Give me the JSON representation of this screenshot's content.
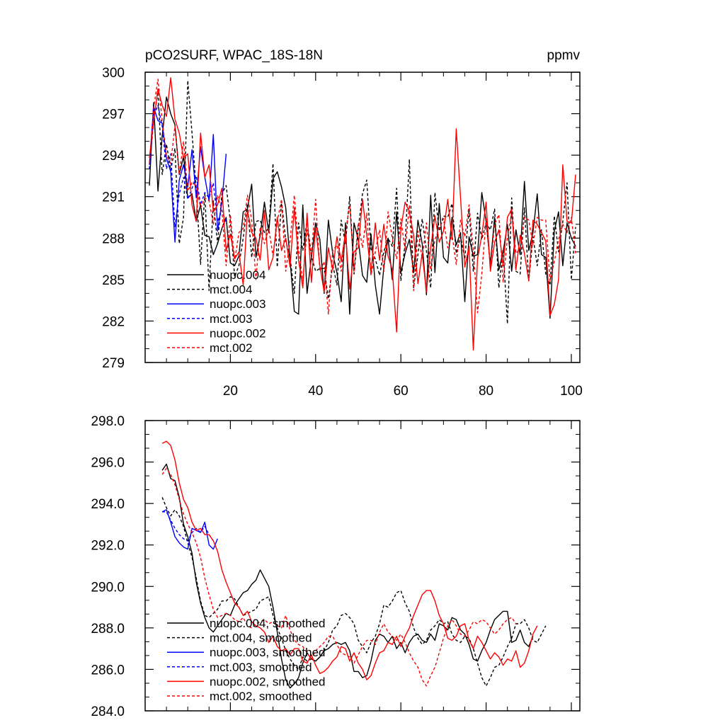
{
  "chart_data": [
    {
      "type": "line",
      "title": "pCO2SURF, WPAC_18S-18N",
      "units": "ppmv",
      "xlim": [
        0,
        102
      ],
      "ylim": [
        279,
        300
      ],
      "yticks": [
        279,
        282,
        285,
        288,
        291,
        294,
        297,
        300
      ],
      "ytick_labels": [
        "279",
        "282",
        "285",
        "288",
        "291",
        "294",
        "297",
        "300"
      ],
      "xticks": [
        20,
        40,
        60,
        80,
        100
      ],
      "xtick_labels": [
        "20",
        "40",
        "60",
        "80",
        "100"
      ],
      "series": [
        {
          "name": "nuopc.004",
          "color": "#000000",
          "dash": "solid",
          "x0": 1,
          "values": [
            291.8,
            297.8,
            291.4,
            295.4,
            298.2,
            297.0,
            296.2,
            292.6,
            293.9,
            290.9,
            291.2,
            289.2,
            290.4,
            288.2,
            288.1,
            286.8,
            287.6,
            288.7,
            289.5,
            286.2,
            286.0,
            286.7,
            289.9,
            290.1,
            291.9,
            286.6,
            288.2,
            290.6,
            288.4,
            292.3,
            292.8,
            291.7,
            290.2,
            286.4,
            282.7,
            282.5,
            290.4,
            284.0,
            286.6,
            289.1,
            287.9,
            284.0,
            289.3,
            286.9,
            285.5,
            283.4,
            289.1,
            282.5,
            289.1,
            287.9,
            285.3,
            284.8,
            288.3,
            284.6,
            282.5,
            285.9,
            288.0,
            285.0,
            289.9,
            285.5,
            286.9,
            287.9,
            285.5,
            289.3,
            287.6,
            283.9,
            291.1,
            285.5,
            290.5,
            286.6,
            286.2,
            289.5,
            287.5,
            288.4,
            283.4,
            288.1,
            286.7,
            286.8,
            291.3,
            289.2,
            286.1,
            289.5,
            285.7,
            287.0,
            289.0,
            285.6,
            288.6,
            286.8,
            292.1,
            287.1,
            288.4,
            291.2,
            286.8,
            286.6,
            282.2,
            288.5,
            289.9,
            286.0,
            289.1,
            288.0,
            287.4
          ]
        },
        {
          "name": "mct.004",
          "color": "#000000",
          "dash": "dash",
          "x0": 1,
          "values": [
            293.0,
            296.5,
            298.6,
            292.6,
            294.8,
            292.9,
            294.5,
            287.6,
            289.5,
            299.4,
            295.6,
            291.5,
            286.1,
            291.3,
            284.2,
            290.7,
            287.6,
            291.2,
            291.8,
            289.2,
            285.2,
            286.0,
            288.0,
            290.5,
            286.6,
            289.2,
            289.3,
            288.4,
            288.7,
            293.4,
            285.9,
            290.7,
            287.8,
            286.6,
            284.0,
            289.1,
            287.1,
            289.3,
            286.7,
            285.6,
            285.8,
            285.8,
            283.6,
            286.1,
            284.6,
            289.3,
            287.6,
            291.0,
            285.4,
            288.7,
            291.2,
            292.2,
            287.2,
            286.5,
            285.3,
            287.0,
            288.0,
            287.4,
            291.6,
            284.9,
            287.6,
            293.7,
            284.4,
            286.8,
            289.4,
            287.1,
            284.4,
            291.3,
            288.5,
            289.6,
            289.5,
            290.5,
            286.9,
            288.1,
            286.5,
            290.1,
            285.6,
            289.8,
            287.9,
            289.1,
            288.6,
            290.1,
            284.4,
            287.2,
            281.8,
            290.9,
            285.6,
            285.4,
            290.2,
            284.9,
            288.1,
            286.0,
            288.6,
            285.4,
            284.6,
            289.6,
            287.0,
            289.2,
            292.0,
            285.0,
            288.8
          ]
        },
        {
          "name": "nuopc.003",
          "color": "#0000ff",
          "dash": "solid",
          "x0": 1,
          "values": [
            293.3,
            297.5,
            296.5,
            296.3,
            293.8,
            292.8,
            287.7,
            292.2,
            293.3,
            291.7,
            294.4,
            290.9,
            294.6,
            292.4,
            290.7,
            295.5,
            288.5,
            290.6,
            294.1
          ]
        },
        {
          "name": "mct.003",
          "color": "#0000ff",
          "dash": "dash",
          "x0": 1,
          "values": [
            293.0,
            296.8,
            297.6,
            296.1,
            293.0,
            294.1,
            288.8,
            291.2,
            292.4,
            290.8,
            291.6,
            292.5,
            290.4,
            291.3,
            290.9,
            292.0,
            289.2,
            290.0,
            289.1
          ]
        },
        {
          "name": "nuopc.002",
          "color": "#ff0000",
          "dash": "solid",
          "x0": 1,
          "values": [
            293.8,
            296.4,
            298.8,
            297.6,
            296.8,
            299.6,
            296.6,
            295.6,
            293.8,
            294.1,
            290.4,
            289.2,
            295.6,
            292.4,
            293.3,
            289.9,
            290.4,
            291.6,
            287.1,
            288.3,
            286.5,
            287.0,
            284.6,
            290.0,
            288.4,
            288.0,
            286.4,
            290.0,
            285.7,
            286.6,
            289.5,
            287.1,
            288.0,
            285.9,
            290.2,
            286.4,
            284.4,
            289.8,
            284.8,
            288.8,
            286.0,
            284.1,
            287.3,
            285.7,
            288.1,
            286.3,
            288.4,
            284.3,
            287.0,
            287.3,
            290.8,
            288.2,
            285.4,
            289.1,
            286.4,
            289.0,
            286.7,
            285.7,
            281.2,
            288.7,
            290.6,
            289.9,
            288.2,
            284.7,
            286.9,
            284.1,
            287.3,
            289.6,
            287.7,
            288.5,
            290.8,
            287.9,
            295.9,
            290.9,
            285.9,
            287.4,
            279.9,
            286.5,
            288.2,
            290.6,
            285.6,
            287.7,
            288.6,
            286.0,
            289.5,
            290.1,
            285.7,
            288.2,
            286.9,
            284.9,
            289.3,
            289.0,
            288.4,
            287.8,
            282.4,
            283.2,
            285.0,
            293.3,
            289.2,
            289.1,
            292.6
          ]
        },
        {
          "name": "mct.002",
          "color": "#ff0000",
          "dash": "dash",
          "x0": 1,
          "values": [
            293.4,
            297.4,
            299.5,
            296.5,
            294.0,
            293.4,
            296.1,
            292.6,
            295.0,
            291.4,
            292.0,
            291.8,
            290.2,
            290.9,
            290.7,
            289.0,
            291.1,
            290.0,
            286.0,
            289.7,
            286.3,
            288.4,
            288.7,
            291.1,
            289.3,
            285.0,
            288.8,
            287.6,
            288.7,
            286.7,
            289.2,
            290.8,
            285.6,
            287.8,
            291.1,
            287.2,
            284.9,
            288.6,
            286.7,
            290.8,
            285.6,
            286.3,
            282.5,
            287.1,
            287.5,
            285.6,
            288.4,
            290.4,
            285.6,
            289.1,
            287.3,
            289.8,
            285.3,
            287.0,
            288.6,
            285.6,
            289.9,
            288.0,
            286.5,
            289.4,
            287.1,
            290.4,
            284.2,
            288.5,
            286.5,
            289.1,
            285.7,
            287.9,
            288.7,
            289.4,
            287.3,
            288.3,
            286.1,
            289.3,
            288.1,
            290.4,
            287.2,
            282.6,
            285.4,
            289.4,
            285.9,
            289.0,
            289.7,
            284.8,
            288.0,
            289.8,
            286.9,
            287.2,
            289.5,
            289.3,
            287.5,
            289.5,
            289.3,
            289.3,
            284.9,
            286.3,
            287.9,
            289.0,
            288.4,
            289.5,
            286.9
          ]
        }
      ]
    },
    {
      "type": "line",
      "title": "",
      "xlim": [
        0,
        102
      ],
      "ylim": [
        284.0,
        298.0
      ],
      "yticks": [
        284,
        286,
        288,
        290,
        292,
        294,
        296,
        298
      ],
      "ytick_labels": [
        "284.0",
        "286.0",
        "288.0",
        "290.0",
        "292.0",
        "294.0",
        "296.0",
        "298.0"
      ],
      "xticks": [
        20,
        40,
        60,
        80,
        100
      ],
      "series": [
        {
          "name": "nuopc.004, smoothed",
          "color": "#000000",
          "dash": "solid",
          "x0": 4,
          "values": [
            295.6,
            295.9,
            295.2,
            295.1,
            294.3,
            293.0,
            292.4,
            291.6,
            290.2,
            289.2,
            288.5,
            288.0,
            287.8,
            288.1,
            288.4,
            288.7,
            288.6,
            289.1,
            289.4,
            289.7,
            289.8,
            290.1,
            290.3,
            290.8,
            290.4,
            290.0,
            289.0,
            287.8,
            286.5,
            285.5,
            285.1,
            285.3,
            285.6,
            286.3,
            286.8,
            286.5,
            286.4,
            286.6,
            286.9,
            287.0,
            287.2,
            287.3,
            287.2,
            287.3,
            286.9,
            285.9,
            285.9,
            285.6,
            285.7,
            286.4,
            287.4,
            287.7,
            287.6,
            287.3,
            287.6,
            287.0,
            287.3,
            286.8,
            287.3,
            287.6,
            287.7,
            287.4,
            287.3,
            287.7,
            287.4,
            288.2,
            288.1,
            287.9,
            288.5,
            288.4,
            287.9,
            287.7,
            287.2,
            286.5,
            286.4,
            286.9,
            287.3,
            287.9,
            288.4,
            288.6,
            288.8,
            288.8,
            287.3,
            287.4,
            287.9,
            287.3,
            287.1,
            287.6
          ]
        },
        {
          "name": "mct.004, smoothed",
          "color": "#000000",
          "dash": "dash",
          "x0": 4,
          "values": [
            294.3,
            293.8,
            293.4,
            293.7,
            293.4,
            292.9,
            292.1,
            291.4,
            290.4,
            289.3,
            288.6,
            288.5,
            288.7,
            288.9,
            289.3,
            289.3,
            289.5,
            289.4,
            289.0,
            288.6,
            288.7,
            288.8,
            288.9,
            289.3,
            289.4,
            289.5,
            288.6,
            288.0,
            287.5,
            286.9,
            286.5,
            286.2,
            286.0,
            286.6,
            286.4,
            286.5,
            286.4,
            286.6,
            286.9,
            287.3,
            287.9,
            288.1,
            288.6,
            288.7,
            288.5,
            288.2,
            287.4,
            287.1,
            286.8,
            287.3,
            287.6,
            288.2,
            289.1,
            289.0,
            289.3,
            289.7,
            289.8,
            289.2,
            288.8,
            288.0,
            287.5,
            287.2,
            287.4,
            287.9,
            288.1,
            288.4,
            288.2,
            288.3,
            287.7,
            287.4,
            287.3,
            287.6,
            287.5,
            287.0,
            286.3,
            285.6,
            285.2,
            285.6,
            286.1,
            286.2,
            286.6,
            287.1,
            287.5,
            288.2,
            288.2,
            288.4,
            288.0,
            287.4,
            287.3,
            287.7,
            288.1
          ]
        },
        {
          "name": "nuopc.003, smoothed",
          "color": "#0000ff",
          "dash": "solid",
          "x0": 4,
          "values": [
            293.6,
            293.7,
            293.1,
            292.4,
            292.1,
            291.9,
            291.8,
            292.8,
            292.7,
            292.6,
            293.1,
            292.0,
            291.8,
            292.3
          ]
        },
        {
          "name": "mct.003, smoothed",
          "color": "#0000ff",
          "dash": "dash",
          "x0": 4,
          "values": [
            293.6,
            293.6,
            293.2,
            292.8,
            292.5,
            292.3,
            292.2,
            292.6,
            292.8,
            292.6,
            292.9,
            292.5,
            292.2
          ]
        },
        {
          "name": "nuopc.002, smoothed",
          "color": "#ff0000",
          "dash": "solid",
          "x0": 4,
          "values": [
            296.9,
            297.0,
            296.8,
            296.1,
            295.0,
            294.2,
            293.8,
            293.1,
            292.7,
            292.8,
            292.5,
            292.5,
            292.2,
            291.7,
            290.8,
            290.2,
            289.7,
            289.2,
            289.0,
            288.6,
            288.8,
            288.3,
            288.1,
            288.0,
            287.8,
            287.3,
            287.6,
            287.1,
            286.9,
            287.0,
            286.7,
            287.0,
            287.0,
            286.4,
            286.3,
            286.7,
            286.2,
            285.8,
            285.9,
            286.1,
            286.4,
            286.6,
            287.1,
            287.0,
            286.4,
            286.8,
            286.3,
            286.0,
            285.5,
            285.7,
            286.3,
            286.8,
            286.9,
            287.3,
            287.2,
            287.6,
            287.1,
            287.6,
            288.0,
            288.6,
            289.1,
            289.6,
            289.8,
            289.8,
            289.3,
            288.6,
            288.2,
            287.5,
            287.4,
            287.6,
            288.1,
            288.2,
            287.4,
            287.0,
            287.6,
            287.3,
            286.9,
            286.5,
            286.8,
            286.6,
            286.2,
            286.5,
            286.4,
            286.9,
            286.1,
            286.3,
            286.9,
            287.7,
            288.1
          ]
        },
        {
          "name": "mct.002, smoothed",
          "color": "#ff0000",
          "dash": "dash",
          "x0": 4,
          "values": [
            295.4,
            295.7,
            295.4,
            294.9,
            294.2,
            293.5,
            293.0,
            292.6,
            292.1,
            291.4,
            290.4,
            289.6,
            288.9,
            288.5,
            288.6,
            288.7,
            288.6,
            288.4,
            288.3,
            288.5,
            288.1,
            288.0,
            288.2,
            288.3,
            288.4,
            288.2,
            288.3,
            288.1,
            288.0,
            288.6,
            287.9,
            287.4,
            287.2,
            287.1,
            286.8,
            286.5,
            286.9,
            287.1,
            287.3,
            287.6,
            287.6,
            287.2,
            286.8,
            286.7,
            286.6,
            286.3,
            286.7,
            287.1,
            287.4,
            287.4,
            287.2,
            287.8,
            288.2,
            287.8,
            287.6,
            287.4,
            287.7,
            287.3,
            286.8,
            286.4,
            286.1,
            285.5,
            285.2,
            285.7,
            286.1,
            286.8,
            287.5,
            288.1,
            288.4,
            288.1,
            287.7,
            287.6,
            287.9,
            288.3,
            288.2,
            288.4,
            288.3,
            288.0,
            287.7,
            287.9,
            288.2,
            288.4,
            288.5,
            288.2
          ]
        }
      ]
    }
  ]
}
